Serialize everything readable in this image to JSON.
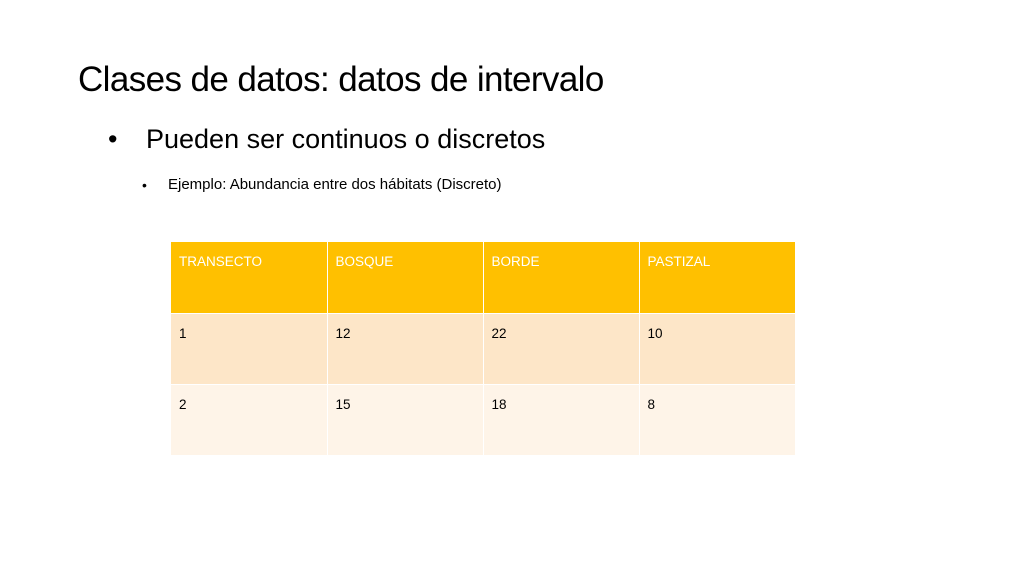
{
  "slide": {
    "title": "Clases de datos: datos de intervalo",
    "bullet_level1": "Pueden ser continuos o discretos",
    "bullet_level2": "Ejemplo: Abundancia entre dos hábitats (Discreto)",
    "bullet_glyph": "•"
  },
  "table": {
    "headers": [
      "TRANSECTO",
      "BOSQUE",
      "BORDE",
      "PASTIZAL"
    ],
    "rows": [
      [
        "1",
        "12",
        "22",
        "10"
      ],
      [
        "2",
        "15",
        "18",
        "8"
      ]
    ],
    "colors": {
      "header_bg": "#ffc000",
      "header_text": "#ffffff",
      "row_odd_bg": "#fde6c8",
      "row_even_bg": "#fef4e8"
    }
  }
}
